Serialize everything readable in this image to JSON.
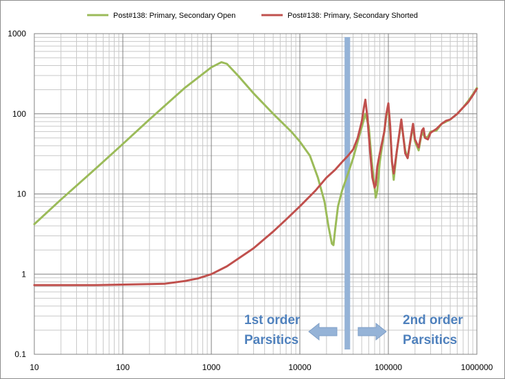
{
  "chart_data": {
    "type": "line",
    "title": "",
    "xlabel": "",
    "ylabel": "",
    "x_scale": "log",
    "y_scale": "log",
    "xlim": [
      10,
      1000000
    ],
    "ylim": [
      0.1,
      1000
    ],
    "grid": true,
    "legend_position": "top",
    "x_tick_labels": [
      "10",
      "100",
      "1000",
      "10000",
      "100000",
      "1000000"
    ],
    "y_tick_labels": [
      "0.1",
      "1",
      "10",
      "100",
      "1000"
    ],
    "series": [
      {
        "name": "Post#138: Primary, Secondary Open",
        "color": "#9bbb59",
        "points": [
          [
            10,
            4.2
          ],
          [
            20,
            8.5
          ],
          [
            50,
            21
          ],
          [
            100,
            42
          ],
          [
            200,
            85
          ],
          [
            500,
            210
          ],
          [
            1000,
            380
          ],
          [
            1300,
            440
          ],
          [
            1500,
            420
          ],
          [
            2000,
            300
          ],
          [
            3000,
            180
          ],
          [
            5000,
            100
          ],
          [
            8000,
            60
          ],
          [
            10000,
            45
          ],
          [
            13000,
            30
          ],
          [
            16000,
            16
          ],
          [
            19000,
            8
          ],
          [
            21000,
            4
          ],
          [
            23000,
            2.4
          ],
          [
            24000,
            2.3
          ],
          [
            25000,
            3.5
          ],
          [
            27000,
            7
          ],
          [
            30000,
            11
          ],
          [
            35000,
            18
          ],
          [
            40000,
            28
          ],
          [
            45000,
            45
          ],
          [
            50000,
            68
          ],
          [
            55000,
            100
          ],
          [
            60000,
            70
          ],
          [
            65000,
            25
          ],
          [
            70000,
            12
          ],
          [
            72000,
            9
          ],
          [
            75000,
            11
          ],
          [
            80000,
            25
          ],
          [
            90000,
            60
          ],
          [
            95000,
            95
          ],
          [
            100000,
            120
          ],
          [
            105000,
            60
          ],
          [
            110000,
            25
          ],
          [
            115000,
            15
          ],
          [
            125000,
            35
          ],
          [
            140000,
            80
          ],
          [
            155000,
            35
          ],
          [
            165000,
            28
          ],
          [
            180000,
            50
          ],
          [
            190000,
            70
          ],
          [
            200000,
            45
          ],
          [
            220000,
            35
          ],
          [
            240000,
            60
          ],
          [
            260000,
            50
          ],
          [
            280000,
            52
          ],
          [
            300000,
            60
          ],
          [
            350000,
            62
          ],
          [
            400000,
            75
          ],
          [
            450000,
            80
          ],
          [
            500000,
            85
          ],
          [
            600000,
            100
          ],
          [
            700000,
            120
          ],
          [
            800000,
            145
          ],
          [
            900000,
            175
          ],
          [
            1000000,
            210
          ]
        ]
      },
      {
        "name": "Post#138: Primary, Secondary Shorted",
        "color": "#c0504d",
        "points": [
          [
            10,
            0.73
          ],
          [
            50,
            0.73
          ],
          [
            100,
            0.74
          ],
          [
            200,
            0.75
          ],
          [
            300,
            0.76
          ],
          [
            500,
            0.82
          ],
          [
            700,
            0.88
          ],
          [
            1000,
            1.0
          ],
          [
            1500,
            1.25
          ],
          [
            2000,
            1.55
          ],
          [
            3000,
            2.1
          ],
          [
            5000,
            3.4
          ],
          [
            7000,
            4.8
          ],
          [
            10000,
            7
          ],
          [
            15000,
            11
          ],
          [
            20000,
            16
          ],
          [
            25000,
            20
          ],
          [
            30000,
            25
          ],
          [
            35000,
            30
          ],
          [
            40000,
            36
          ],
          [
            45000,
            50
          ],
          [
            50000,
            80
          ],
          [
            53000,
            120
          ],
          [
            55000,
            150
          ],
          [
            58000,
            90
          ],
          [
            62000,
            35
          ],
          [
            66000,
            16
          ],
          [
            70000,
            12
          ],
          [
            72000,
            13
          ],
          [
            75000,
            22
          ],
          [
            80000,
            32
          ],
          [
            90000,
            60
          ],
          [
            95000,
            100
          ],
          [
            100000,
            135
          ],
          [
            105000,
            70
          ],
          [
            110000,
            25
          ],
          [
            115000,
            18
          ],
          [
            125000,
            35
          ],
          [
            140000,
            85
          ],
          [
            155000,
            32
          ],
          [
            165000,
            28
          ],
          [
            180000,
            52
          ],
          [
            190000,
            75
          ],
          [
            200000,
            48
          ],
          [
            220000,
            38
          ],
          [
            240000,
            62
          ],
          [
            250000,
            66
          ],
          [
            260000,
            50
          ],
          [
            280000,
            48
          ],
          [
            300000,
            58
          ],
          [
            350000,
            65
          ],
          [
            400000,
            75
          ],
          [
            450000,
            82
          ],
          [
            500000,
            85
          ],
          [
            600000,
            100
          ],
          [
            700000,
            120
          ],
          [
            800000,
            140
          ],
          [
            900000,
            170
          ],
          [
            1000000,
            205
          ]
        ]
      }
    ],
    "band": {
      "x_range": [
        32000,
        37000
      ],
      "color": "#95b3d7"
    },
    "annotations": [
      {
        "lines": [
          "1st order",
          "Parsitics"
        ],
        "color": "#4f81bd"
      },
      {
        "lines": [
          "2nd order",
          "Parsitics"
        ],
        "color": "#4f81bd"
      }
    ],
    "arrows": [
      {
        "direction": "left",
        "color": "#95b3d7"
      },
      {
        "direction": "right",
        "color": "#95b3d7"
      }
    ]
  }
}
